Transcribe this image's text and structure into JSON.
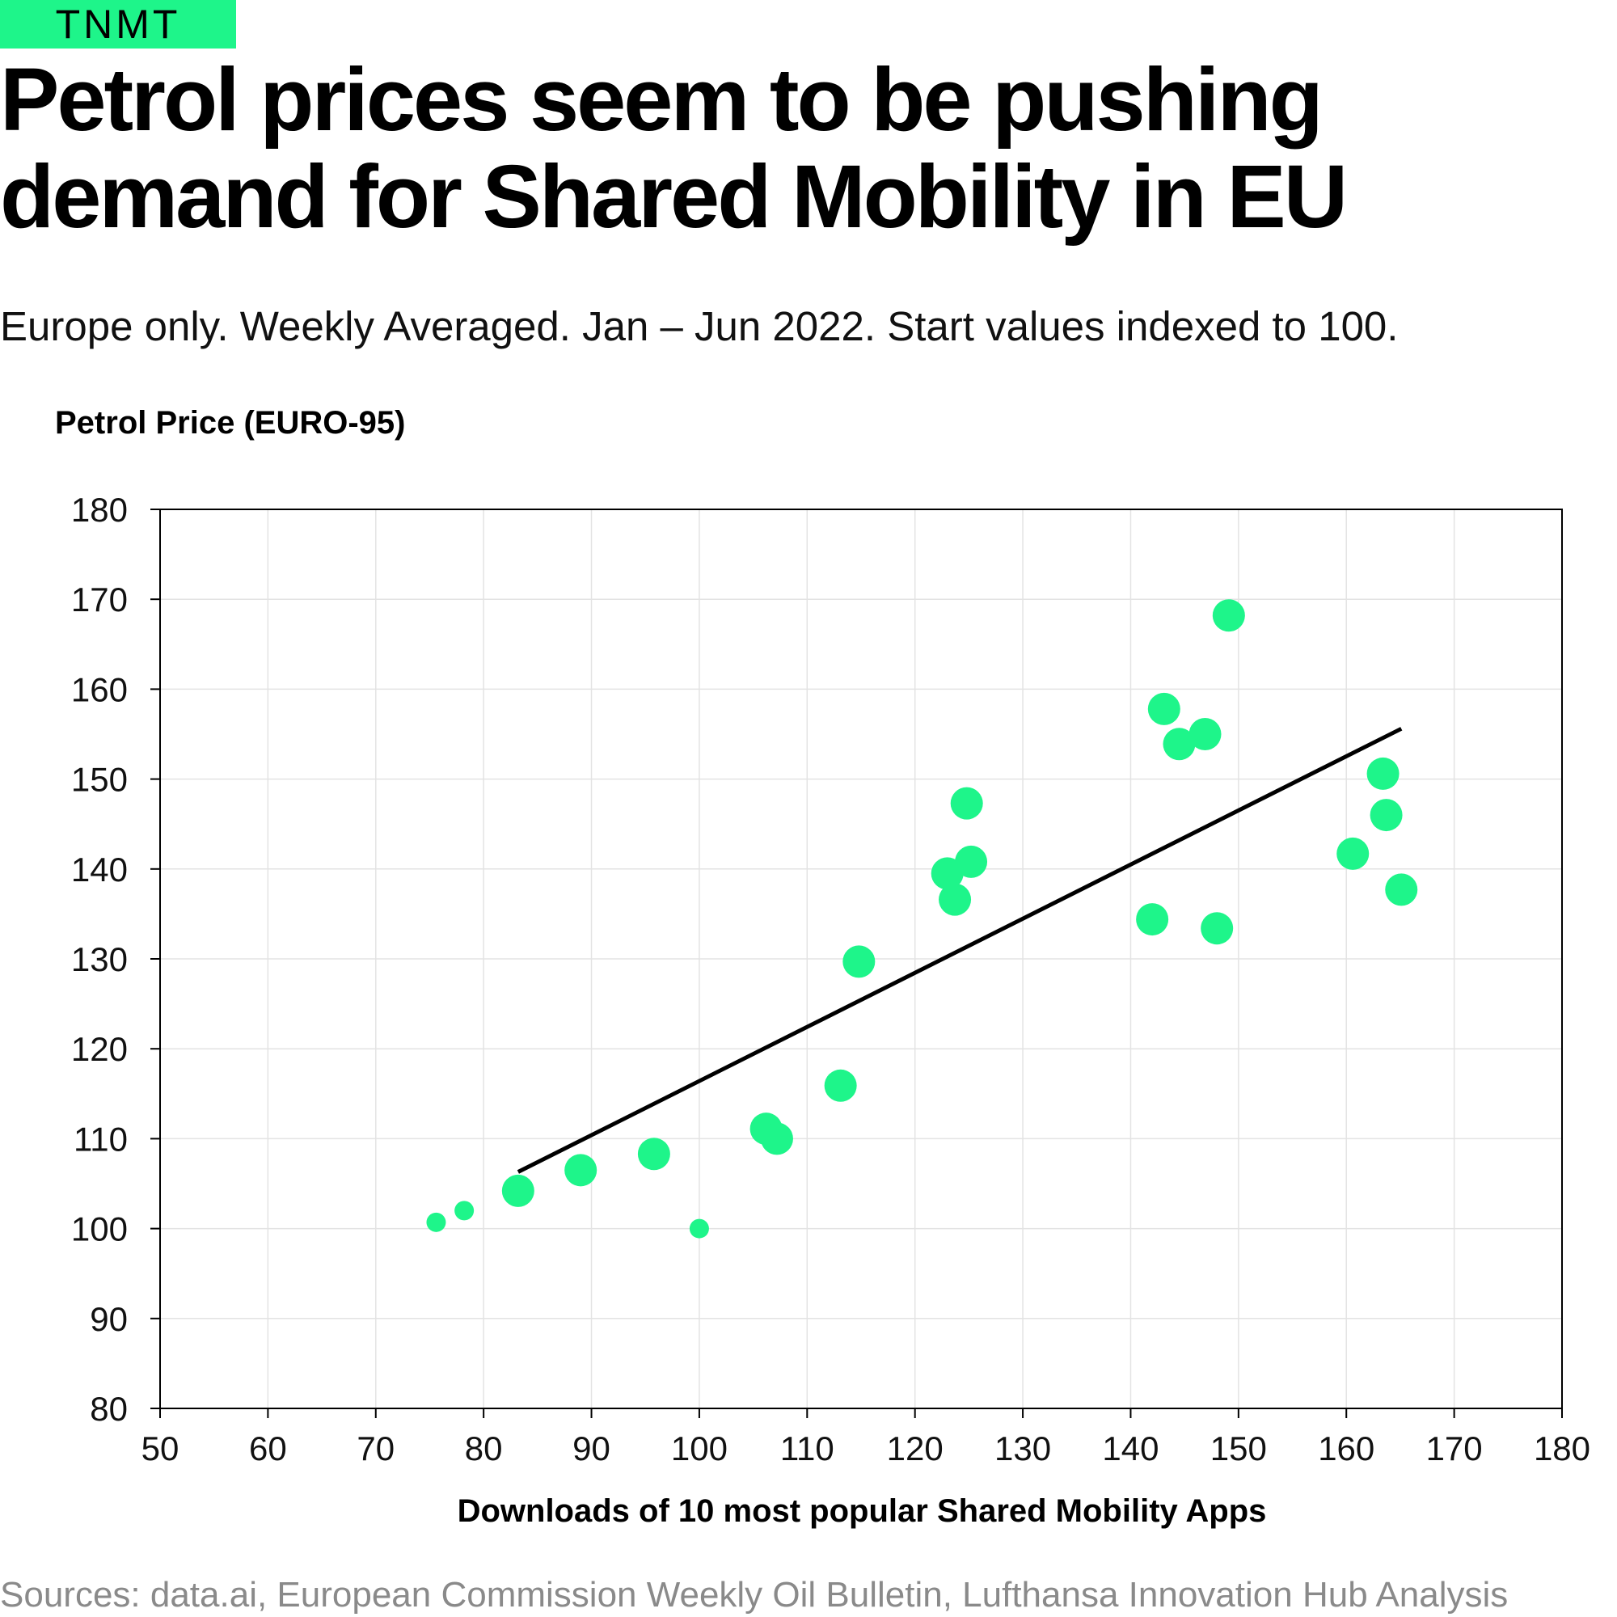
{
  "brand": {
    "logo_text": "TNMT"
  },
  "header": {
    "title": "Petrol prices seem to be pushing demand for Shared Mobility in EU",
    "subtitle": "Europe only. Weekly Averaged. Jan – Jun 2022. Start values indexed to 100."
  },
  "footer": {
    "sources": "Sources: data.ai, European Commission Weekly Oil Bulletin, Lufthansa Innovation Hub Analysis"
  },
  "colors": {
    "point": "#1ef58a",
    "trendline": "#000000",
    "grid": "#e3e3e3",
    "axis": "#000000"
  },
  "chart_data": {
    "type": "scatter",
    "xlabel": "Downloads of 10 most popular Shared Mobility Apps",
    "ylabel": "Petrol Price (EURO-95)",
    "xlim": [
      50,
      180
    ],
    "ylim": [
      80,
      180
    ],
    "xticks": [
      50,
      60,
      70,
      80,
      90,
      100,
      110,
      120,
      130,
      140,
      150,
      160,
      170,
      180
    ],
    "yticks": [
      80,
      90,
      100,
      110,
      120,
      130,
      140,
      150,
      160,
      170,
      180
    ],
    "grid": true,
    "points": [
      {
        "x": 75.6,
        "y": 100.7,
        "size": "small"
      },
      {
        "x": 78.2,
        "y": 102.0,
        "size": "small"
      },
      {
        "x": 83.2,
        "y": 104.2,
        "size": "large"
      },
      {
        "x": 89.0,
        "y": 106.5,
        "size": "large"
      },
      {
        "x": 95.8,
        "y": 108.3,
        "size": "large"
      },
      {
        "x": 100.0,
        "y": 100.0,
        "size": "small"
      },
      {
        "x": 106.2,
        "y": 111.1,
        "size": "large"
      },
      {
        "x": 107.2,
        "y": 110.0,
        "size": "large"
      },
      {
        "x": 113.1,
        "y": 115.9,
        "size": "large"
      },
      {
        "x": 114.8,
        "y": 129.7,
        "size": "large"
      },
      {
        "x": 123.0,
        "y": 139.5,
        "size": "large"
      },
      {
        "x": 123.7,
        "y": 136.6,
        "size": "large"
      },
      {
        "x": 124.8,
        "y": 147.3,
        "size": "large"
      },
      {
        "x": 125.2,
        "y": 140.8,
        "size": "large"
      },
      {
        "x": 142.0,
        "y": 134.4,
        "size": "large"
      },
      {
        "x": 143.1,
        "y": 157.8,
        "size": "large"
      },
      {
        "x": 144.5,
        "y": 153.9,
        "size": "large"
      },
      {
        "x": 146.9,
        "y": 155.0,
        "size": "large"
      },
      {
        "x": 148.0,
        "y": 133.4,
        "size": "large"
      },
      {
        "x": 149.1,
        "y": 168.2,
        "size": "large"
      },
      {
        "x": 160.6,
        "y": 141.7,
        "size": "large"
      },
      {
        "x": 163.4,
        "y": 150.6,
        "size": "large"
      },
      {
        "x": 163.7,
        "y": 146.0,
        "size": "large"
      },
      {
        "x": 165.1,
        "y": 137.7,
        "size": "large"
      }
    ],
    "trendline": {
      "x": [
        83.2,
        165.1
      ],
      "y": [
        106.3,
        155.6
      ]
    }
  }
}
